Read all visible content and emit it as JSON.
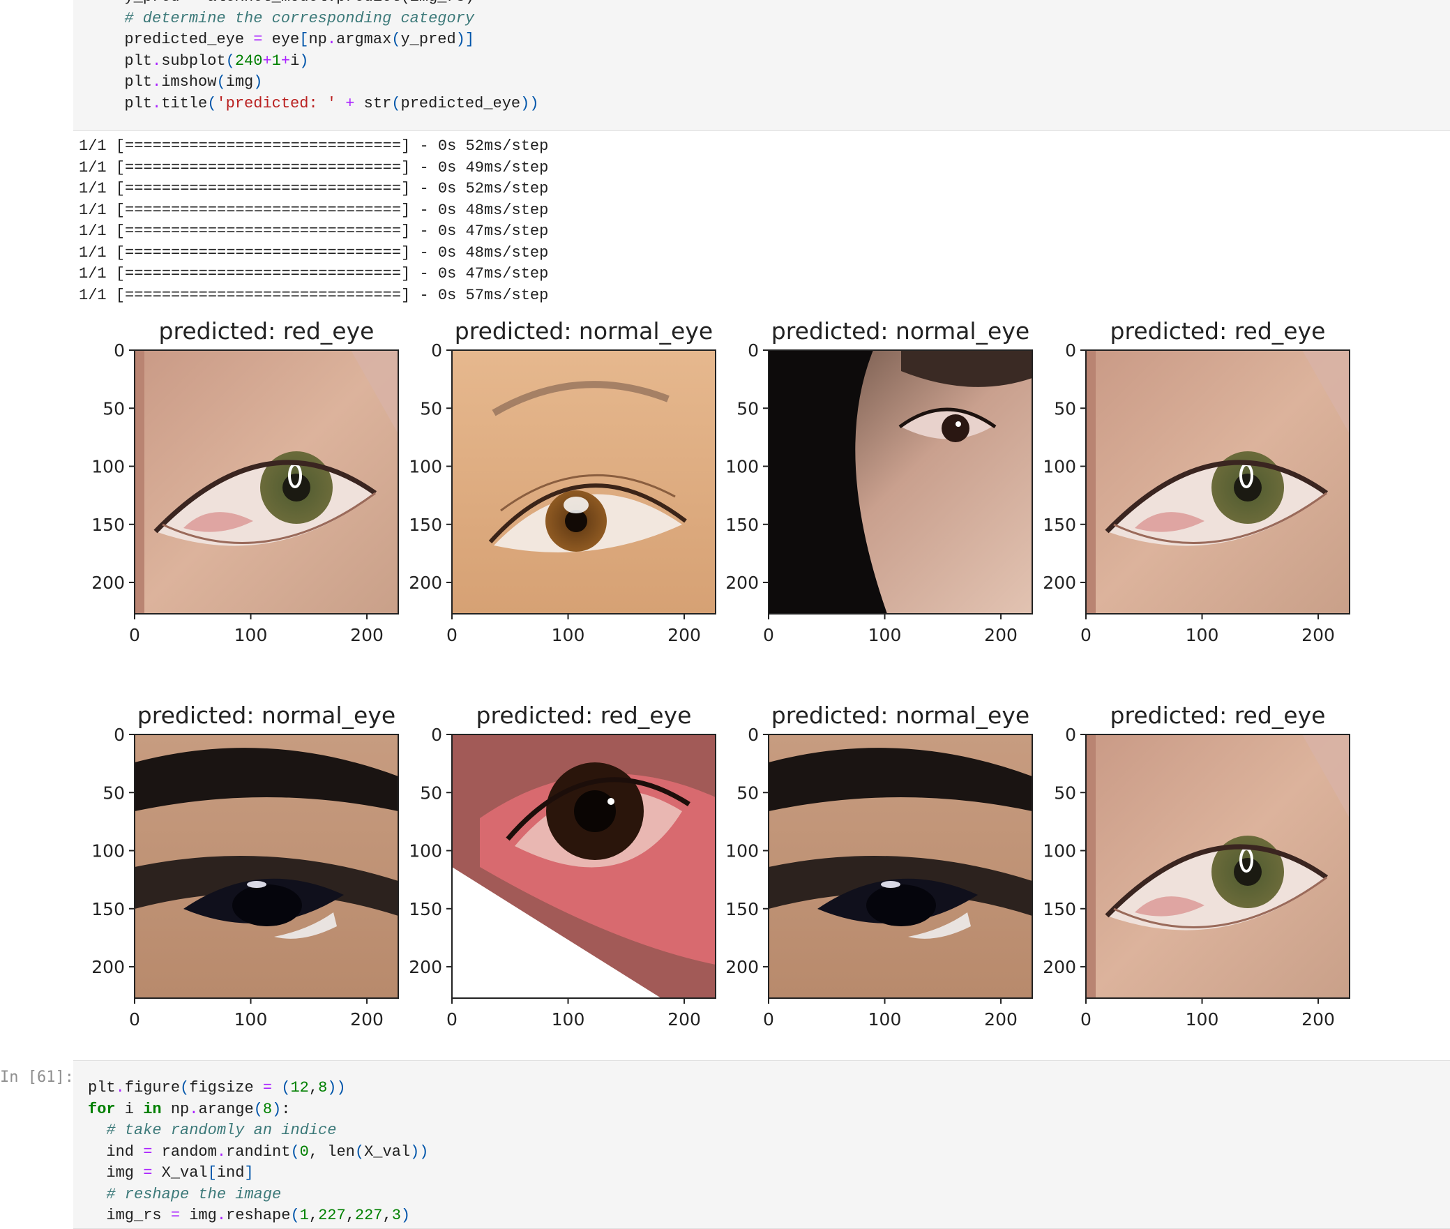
{
  "top_cell_code": [
    {
      "text": "  y_pred = alexnet_model.predict(img_rs)",
      "kind": "code"
    },
    {
      "text": "  # determine the corresponding category",
      "kind": "comment"
    },
    {
      "text": "  predicted_eye = eye[np.argmax(y_pred)]",
      "kind": "code"
    },
    {
      "text": "  plt.subplot(240+1+i)",
      "kind": "code"
    },
    {
      "text": "  plt.imshow(img)",
      "kind": "code"
    },
    {
      "text": "  plt.title('predicted: ' + str(predicted_eye))",
      "kind": "code"
    }
  ],
  "output_log": [
    "1/1 [==============================] - 0s 52ms/step",
    "1/1 [==============================] - 0s 49ms/step",
    "1/1 [==============================] - 0s 52ms/step",
    "1/1 [==============================] - 0s 48ms/step",
    "1/1 [==============================] - 0s 47ms/step",
    "1/1 [==============================] - 0s 48ms/step",
    "1/1 [==============================] - 0s 47ms/step",
    "1/1 [==============================] - 0s 57ms/step"
  ],
  "chart_data": {
    "type": "image-grid",
    "rows": 2,
    "cols": 4,
    "xticks": [
      0,
      100,
      200
    ],
    "yticks": [
      0,
      50,
      100,
      150,
      200
    ],
    "xlim": [
      0,
      227
    ],
    "ylim": [
      227,
      0
    ],
    "subplots": [
      {
        "title": "predicted: red_eye",
        "image": "red-eye-photo"
      },
      {
        "title": "predicted: normal_eye",
        "image": "eyebrow-brown-eye-photo"
      },
      {
        "title": "predicted: normal_eye",
        "image": "dark-hair-side-eye-photo"
      },
      {
        "title": "predicted: red_eye",
        "image": "red-eye-photo"
      },
      {
        "title": "predicted: normal_eye",
        "image": "heavy-brow-dark-eye-photo"
      },
      {
        "title": "predicted: red_eye",
        "image": "bloodshot-diagonal-eye-photo"
      },
      {
        "title": "predicted: normal_eye",
        "image": "heavy-brow-dark-eye-photo"
      },
      {
        "title": "predicted: red_eye",
        "image": "red-eye-photo"
      }
    ]
  },
  "bottom_cell": {
    "prompt": "In [61]:",
    "code": [
      {
        "text": "plt.figure(figsize = (12,8))",
        "kind": "code"
      },
      {
        "text": "for i in np.arange(8):",
        "kind": "code"
      },
      {
        "text": "  # take randomly an indice",
        "kind": "comment"
      },
      {
        "text": "  ind = random.randint(0, len(X_val))",
        "kind": "code"
      },
      {
        "text": "  img = X_val[ind]",
        "kind": "code"
      },
      {
        "text": "  # reshape the image",
        "kind": "comment"
      },
      {
        "text": "  img_rs = img.reshape(1,227,227,3)",
        "kind": "code"
      }
    ]
  },
  "colors": {
    "cell_background": "#f5f5f5",
    "comment": "#3d7a7a",
    "keyword": "#008000",
    "string": "#ba2121",
    "operator": "#aa22ff"
  }
}
